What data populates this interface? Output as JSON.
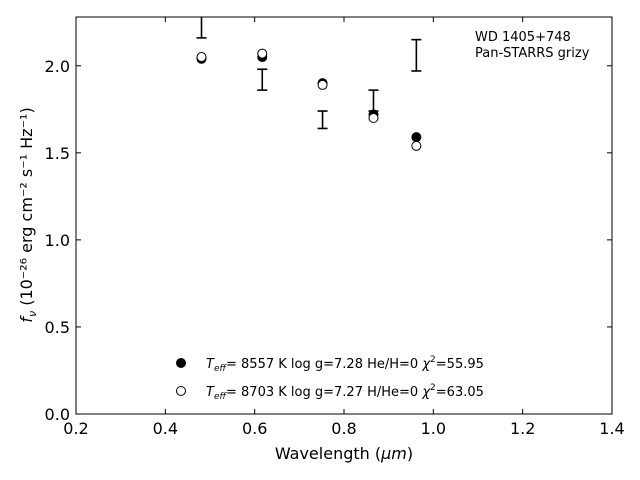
{
  "chart_data": {
    "type": "scatter",
    "xlabel_text": "Wavelength (",
    "xlabel_unit": "μm",
    "xlabel_close": ")",
    "ylabel_prefix": "f",
    "ylabel_sub": "ν",
    "ylabel_units": "(10⁻²⁶ erg cm⁻² s⁻¹ Hz⁻¹)",
    "xlim": [
      0.2,
      1.4
    ],
    "ylim": [
      0.0,
      2.28
    ],
    "xticks": [
      "0.2",
      "0.4",
      "0.6",
      "0.8",
      "1.0",
      "1.2",
      "1.4"
    ],
    "yticks": [
      "0.0",
      "0.5",
      "1.0",
      "1.5",
      "2.0"
    ],
    "annotation_lines": [
      "WD 1405+748",
      "Pan-STARRS grizy"
    ],
    "observed": [
      {
        "x": 0.481,
        "y": 2.38,
        "yerr": 0.22
      },
      {
        "x": 0.617,
        "y": 1.92,
        "yerr": 0.06
      },
      {
        "x": 0.752,
        "y": 1.69,
        "yerr": 0.05
      },
      {
        "x": 0.866,
        "y": 1.8,
        "yerr": 0.06
      },
      {
        "x": 0.962,
        "y": 2.06,
        "yerr": 0.09
      }
    ],
    "series": [
      {
        "marker": "filled",
        "label_teff": "8557 K",
        "label_logg": "log g=7.28",
        "label_comp": "He/H=0",
        "label_chi": "=55.95",
        "points": [
          {
            "x": 0.481,
            "y": 2.04
          },
          {
            "x": 0.617,
            "y": 2.05
          },
          {
            "x": 0.752,
            "y": 1.9
          },
          {
            "x": 0.866,
            "y": 1.72
          },
          {
            "x": 0.962,
            "y": 1.59
          }
        ]
      },
      {
        "marker": "open",
        "label_teff": "8703 K",
        "label_logg": "log g=7.27",
        "label_comp": "H/He=0",
        "label_chi": "=63.05",
        "points": [
          {
            "x": 0.481,
            "y": 2.05
          },
          {
            "x": 0.617,
            "y": 2.07
          },
          {
            "x": 0.752,
            "y": 1.89
          },
          {
            "x": 0.866,
            "y": 1.7
          },
          {
            "x": 0.962,
            "y": 1.54
          }
        ]
      }
    ]
  }
}
